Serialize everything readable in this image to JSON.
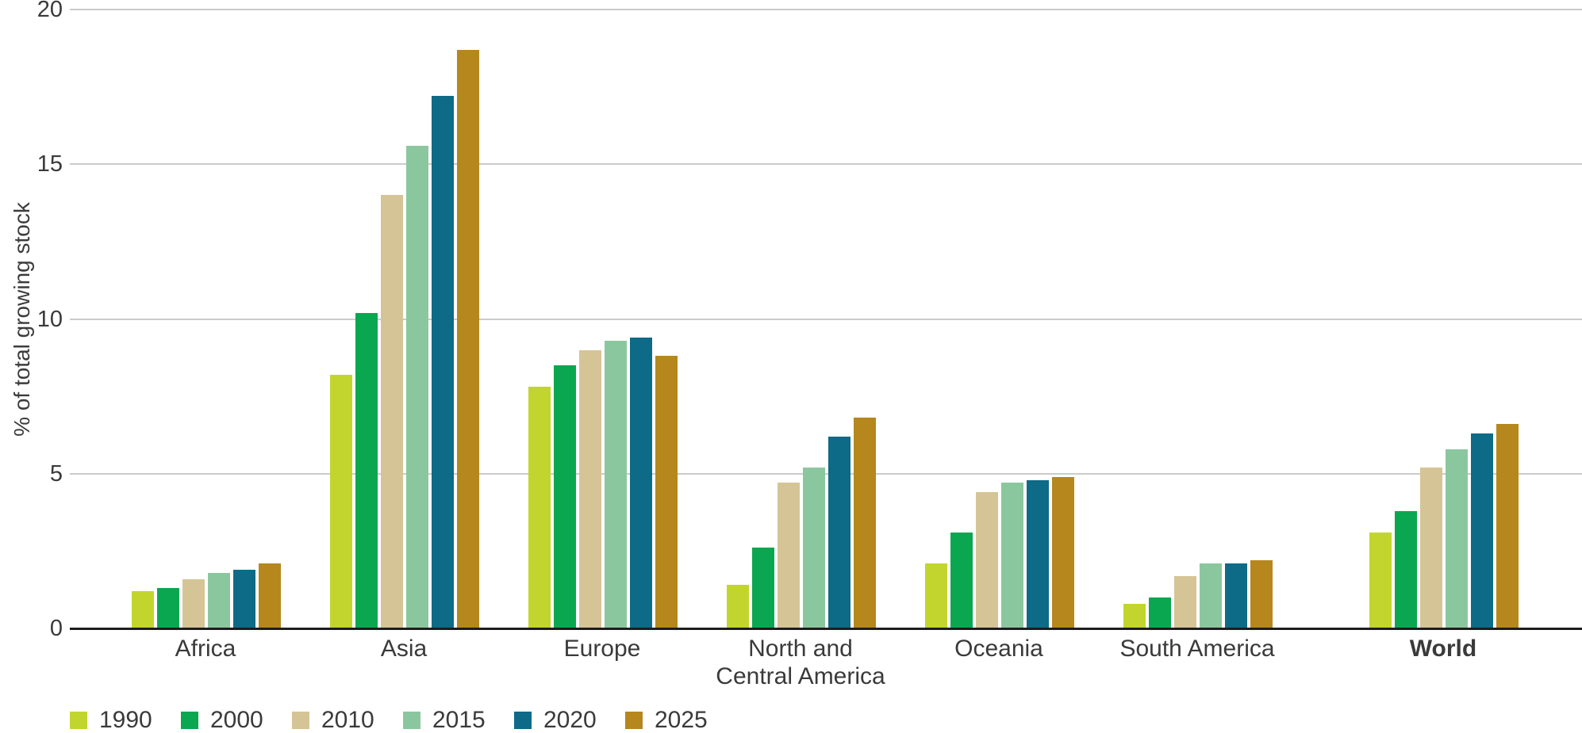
{
  "chart_data": {
    "type": "bar",
    "title": "",
    "xlabel": "",
    "ylabel": "% of total growing stock",
    "ylim": [
      0,
      20
    ],
    "yticks": [
      0,
      5,
      10,
      15,
      20
    ],
    "grid": "horizontal",
    "legend_position": "bottom-left",
    "categories": [
      {
        "label": "Africa",
        "bold": false
      },
      {
        "label": "Asia",
        "bold": false
      },
      {
        "label": "Europe",
        "bold": false
      },
      {
        "label": "North and\nCentral America",
        "bold": false
      },
      {
        "label": "Oceania",
        "bold": false
      },
      {
        "label": "South America",
        "bold": false
      },
      {
        "label": "World",
        "bold": true
      }
    ],
    "series": [
      {
        "name": "1990",
        "color": "#c2d52e",
        "values": [
          1.2,
          8.2,
          7.8,
          1.4,
          2.1,
          0.8,
          3.1
        ]
      },
      {
        "name": "2000",
        "color": "#0ba750",
        "values": [
          1.3,
          10.2,
          8.5,
          2.6,
          3.1,
          1.0,
          3.8
        ]
      },
      {
        "name": "2010",
        "color": "#d5c495",
        "values": [
          1.6,
          14.0,
          9.0,
          4.7,
          4.4,
          1.7,
          5.2
        ]
      },
      {
        "name": "2015",
        "color": "#8bc79e",
        "values": [
          1.8,
          15.6,
          9.3,
          5.2,
          4.7,
          2.1,
          5.8
        ]
      },
      {
        "name": "2020",
        "color": "#0d6b87",
        "values": [
          1.9,
          17.2,
          9.4,
          6.2,
          4.8,
          2.1,
          6.3
        ]
      },
      {
        "name": "2025",
        "color": "#b5871d",
        "values": [
          2.1,
          18.7,
          8.8,
          6.8,
          4.9,
          2.2,
          6.6
        ]
      }
    ]
  }
}
